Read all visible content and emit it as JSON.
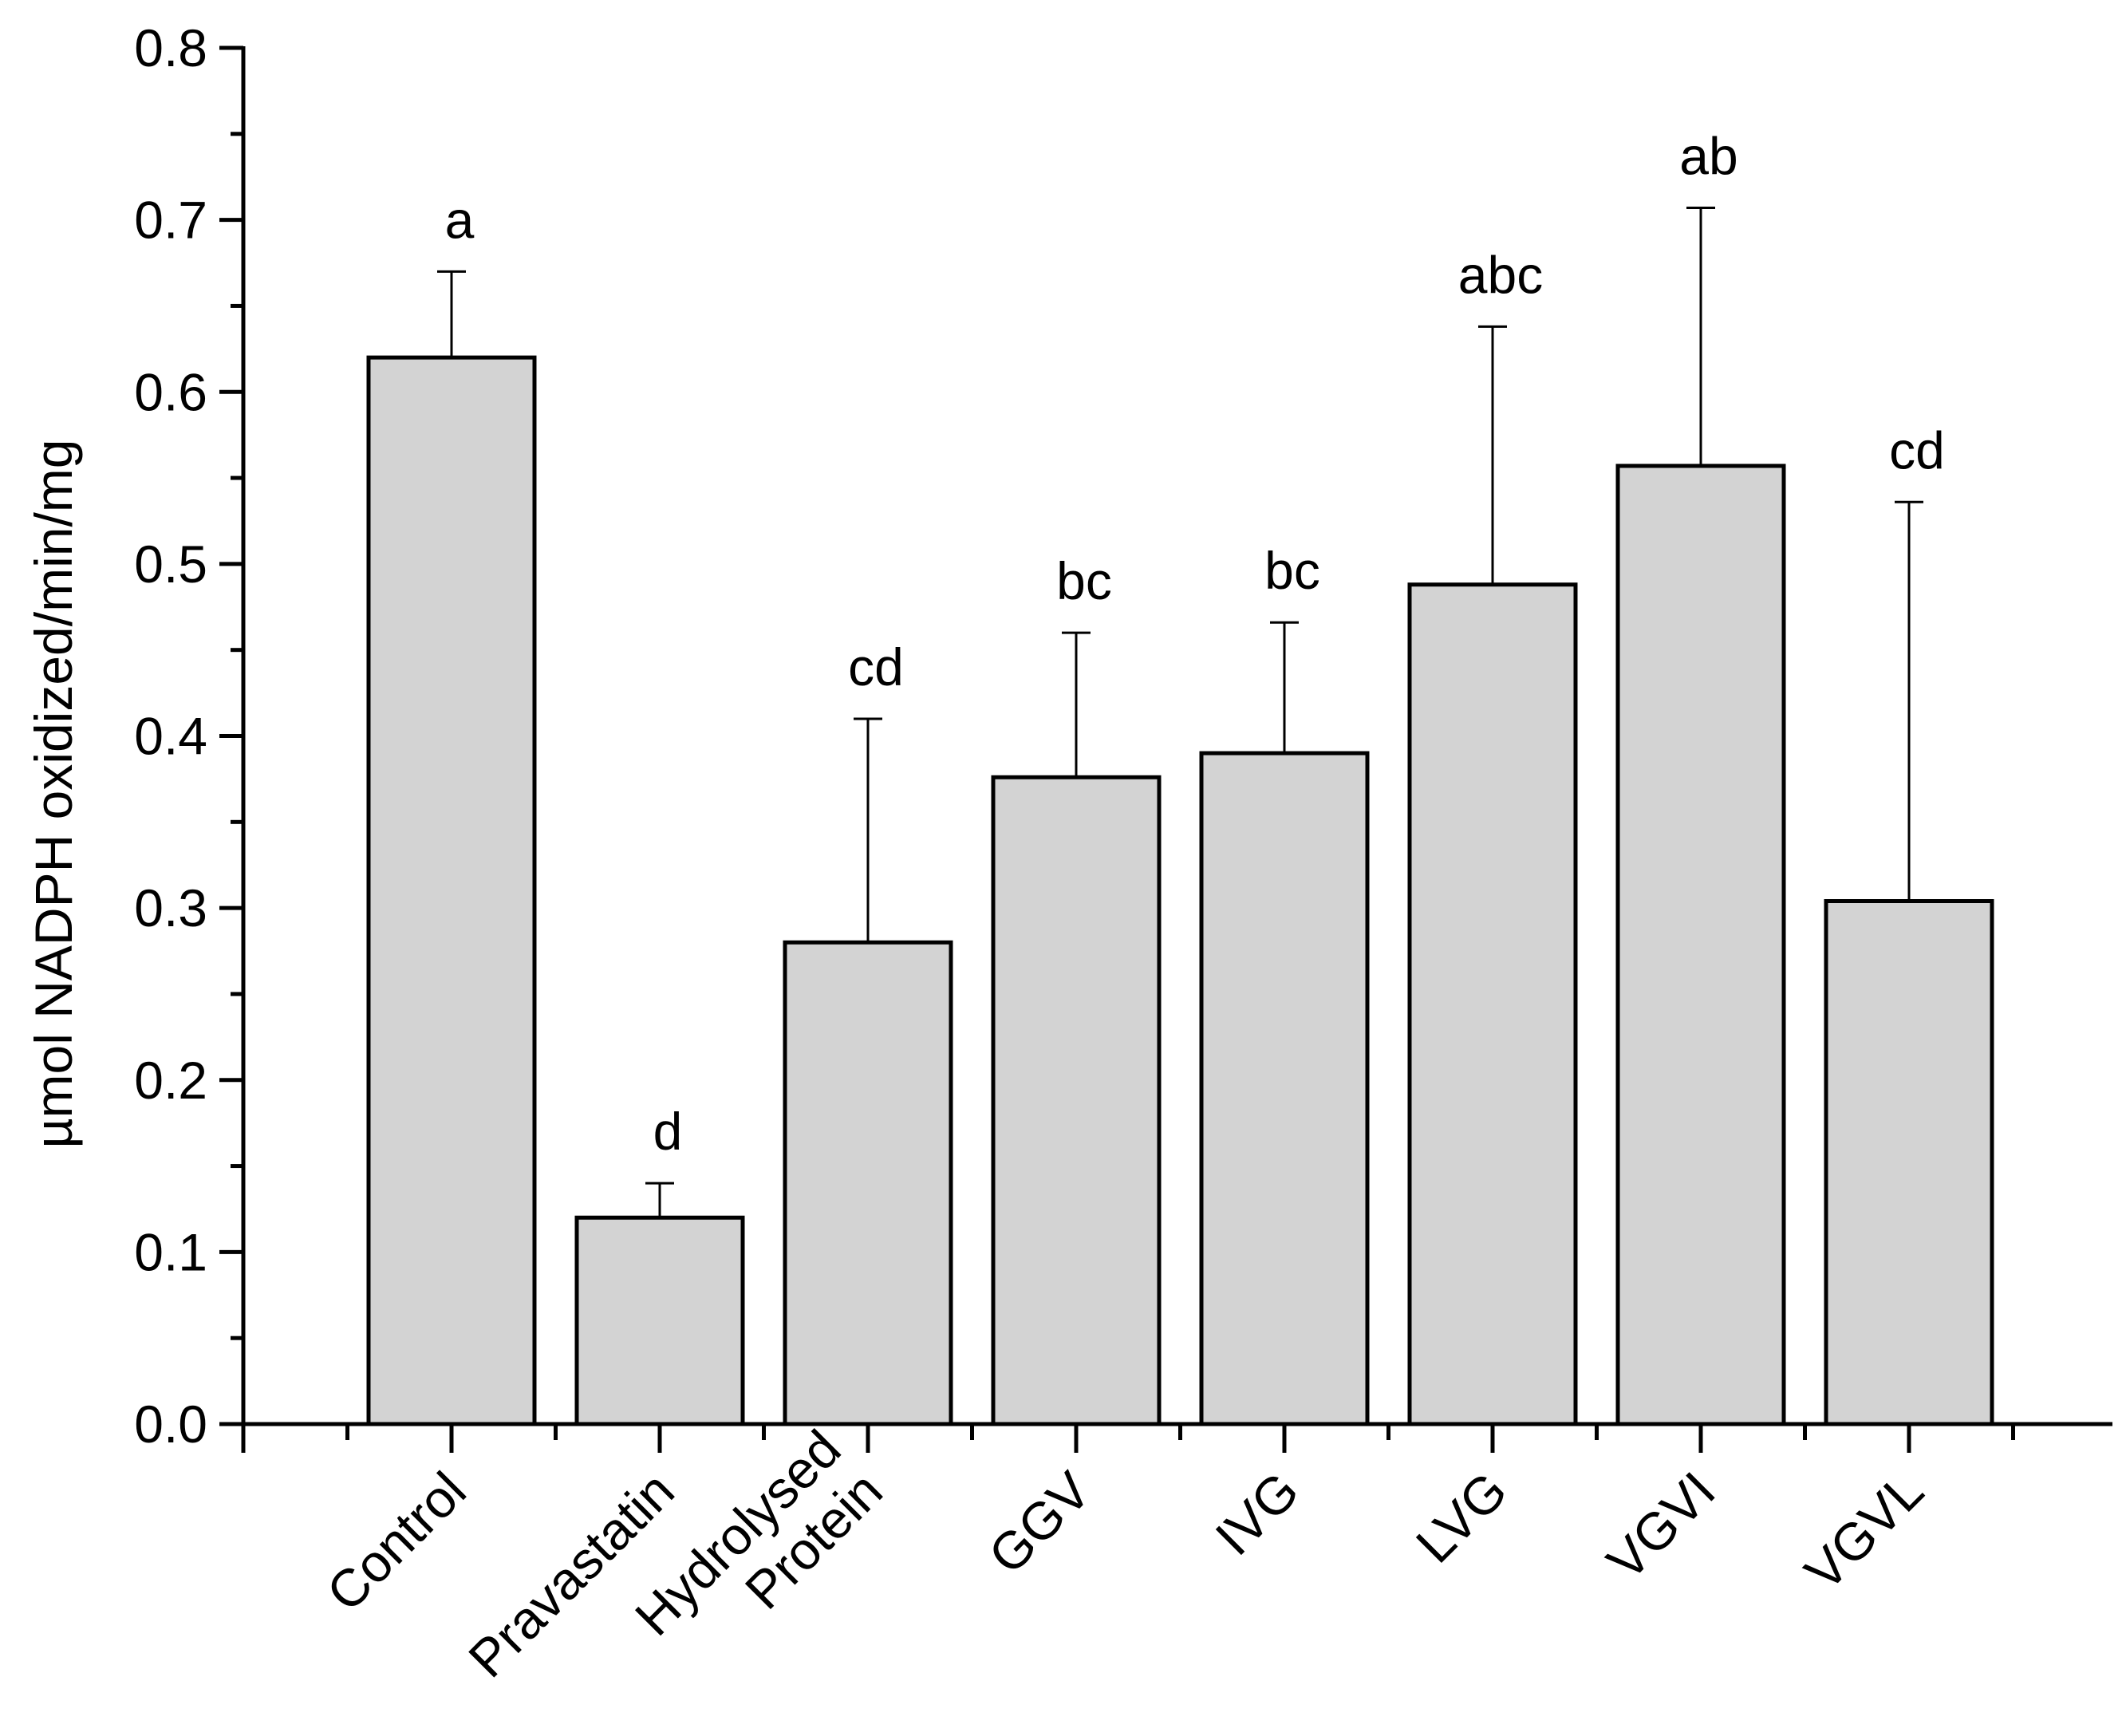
{
  "chart_data": {
    "type": "bar",
    "title": "",
    "xlabel": "",
    "ylabel": "µmol NADPH oxidized/min/mg",
    "ylim": [
      0.0,
      0.8
    ],
    "yticks": [
      "0.0",
      "0.1",
      "0.2",
      "0.3",
      "0.4",
      "0.5",
      "0.6",
      "0.7",
      "0.8"
    ],
    "categories": [
      [
        "Control"
      ],
      [
        "Pravastatin"
      ],
      [
        "Hydrolysed",
        "Protein"
      ],
      [
        "GGV"
      ],
      [
        "IVG"
      ],
      [
        "LVG"
      ],
      [
        "VGVI"
      ],
      [
        "VGVL"
      ]
    ],
    "values": [
      0.62,
      0.12,
      0.28,
      0.376,
      0.39,
      0.488,
      0.557,
      0.304
    ],
    "errors": [
      0.05,
      0.02,
      0.13,
      0.084,
      0.076,
      0.15,
      0.15,
      0.232
    ],
    "significance": [
      "a",
      "d",
      "cd",
      "bc",
      "bc",
      "abc",
      "ab",
      "cd"
    ],
    "grid": false,
    "bar_color": "#d3d3d3",
    "edge_color": "#000000"
  }
}
